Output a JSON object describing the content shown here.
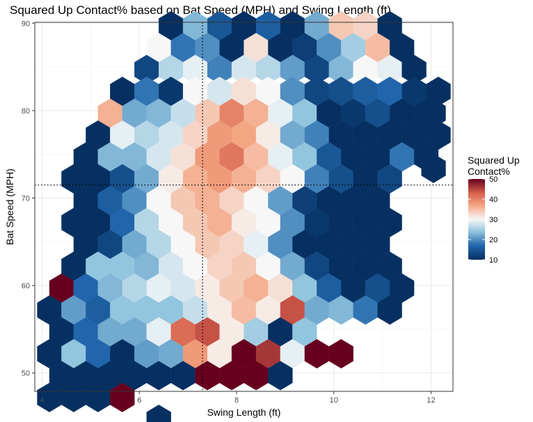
{
  "chart_data": {
    "type": "heatmap",
    "subtype": "hexbin",
    "title": "Squared Up Contact% based on Bat Speed (MPH) and Swing Length (ft)",
    "xlabel": "Swing Length (ft)",
    "ylabel": "Bat Speed (MPH)",
    "xlim": [
      3.85,
      12.45
    ],
    "ylim": [
      47.9,
      90.1
    ],
    "xticks": [
      4,
      6,
      8,
      10,
      12
    ],
    "yticks": [
      50,
      60,
      70,
      80,
      90
    ],
    "grid": true,
    "reference_lines": {
      "x": 7.3,
      "y": 71.5
    },
    "legend": {
      "title_lines": [
        "Squared Up",
        "Contact%"
      ],
      "ticks": [
        10,
        20,
        30,
        40,
        50
      ],
      "placement": "right",
      "color_stops": [
        {
          "value": 10,
          "color": "#053061"
        },
        {
          "value": 17,
          "color": "#2166ac"
        },
        {
          "value": 24,
          "color": "#92c5de"
        },
        {
          "value": 30,
          "color": "#f7f7f7"
        },
        {
          "value": 37,
          "color": "#f4a582"
        },
        {
          "value": 43,
          "color": "#d6604d"
        },
        {
          "value": 50,
          "color": "#67001f"
        }
      ]
    },
    "hex_size": {
      "dx": 0.5,
      "dy": 2.5
    },
    "rows": [
      {
        "y": 89.7,
        "x0": 6.65,
        "values": [
          10,
          23,
          15,
          10,
          16,
          10,
          22,
          34,
          33,
          10
        ]
      },
      {
        "y": 87.2,
        "x0": 6.4,
        "values": [
          30,
          18,
          20,
          10,
          32,
          10,
          12,
          20,
          25,
          35,
          10
        ]
      },
      {
        "y": 84.7,
        "x0": 6.15,
        "values": [
          13,
          26,
          29,
          19,
          28,
          26,
          21,
          13,
          23,
          30,
          29,
          10
        ]
      },
      {
        "y": 82.2,
        "x0": 5.65,
        "values": [
          10,
          18,
          11,
          30,
          28,
          32,
          30,
          20,
          13,
          14,
          16,
          17,
          11,
          10
        ]
      },
      {
        "y": 79.7,
        "x0": 5.4,
        "values": [
          36,
          22,
          23,
          27,
          34,
          40,
          36,
          29,
          24,
          10,
          11,
          14,
          10,
          10
        ]
      },
      {
        "y": 77.2,
        "x0": 5.15,
        "values": [
          10,
          29,
          26,
          28,
          33,
          38,
          37,
          31,
          22,
          19,
          10,
          10,
          10,
          10,
          10
        ]
      },
      {
        "y": 74.7,
        "x0": 4.9,
        "values": [
          10,
          23,
          23,
          28,
          32,
          38,
          41,
          35,
          29,
          24,
          15,
          10,
          10,
          18,
          10
        ]
      },
      {
        "y": 72.2,
        "x0": 4.65,
        "values": [
          10,
          10,
          14,
          22,
          31,
          36,
          38,
          36,
          33,
          30,
          19,
          14,
          10,
          13
        ]
      },
      {
        "y": 69.7,
        "x0": 4.9,
        "values": [
          10,
          16,
          20,
          30,
          34,
          36,
          33,
          30,
          21,
          12,
          10,
          10,
          10
        ]
      },
      {
        "y": 67.2,
        "x0": 4.65,
        "values": [
          10,
          10,
          17,
          26,
          30,
          34,
          36,
          31,
          30,
          20,
          11,
          10,
          10,
          10
        ]
      },
      {
        "y": 64.7,
        "x0": 4.9,
        "values": [
          10,
          13,
          22,
          26,
          30,
          34,
          33,
          29,
          20,
          10,
          10,
          10,
          10
        ]
      },
      {
        "y": 62.2,
        "x0": 4.65,
        "values": [
          10,
          24,
          24,
          23,
          28,
          30,
          33,
          34,
          30,
          22,
          13,
          10,
          10,
          10
        ]
      },
      {
        "y": 59.7,
        "x0": 4.4,
        "values": [
          50,
          17,
          23,
          26,
          29,
          28,
          31,
          34,
          36,
          32,
          24,
          16,
          10,
          14,
          10
        ]
      },
      {
        "y": 57.2,
        "x0": 4.15,
        "values": [
          10,
          21,
          16,
          24,
          24,
          24,
          27,
          31,
          35,
          31,
          44,
          22,
          23,
          18,
          10
        ]
      },
      {
        "y": 54.7,
        "x0": 4.4,
        "values": [
          10,
          17,
          22,
          22,
          29,
          42,
          44,
          31,
          25,
          10,
          24
        ]
      },
      {
        "y": 52.2,
        "x0": 4.15,
        "values": [
          10,
          24,
          17,
          10,
          21,
          22,
          38,
          31,
          50,
          46,
          29,
          50,
          50
        ]
      },
      {
        "y": 49.7,
        "x0": 4.4,
        "values": [
          10,
          10,
          10,
          10,
          10,
          10,
          50,
          50,
          50,
          10
        ]
      },
      {
        "y": 47.2,
        "x0": 4.15,
        "values": [
          10,
          10,
          10,
          50
        ]
      },
      {
        "y": 44.7,
        "x0": 6.4,
        "values": [
          10
        ]
      }
    ],
    "outliers": [
      {
        "x": 12.05,
        "y": 79.7,
        "value": 10
      },
      {
        "x": 12.05,
        "y": 73.4,
        "value": 10
      }
    ]
  }
}
